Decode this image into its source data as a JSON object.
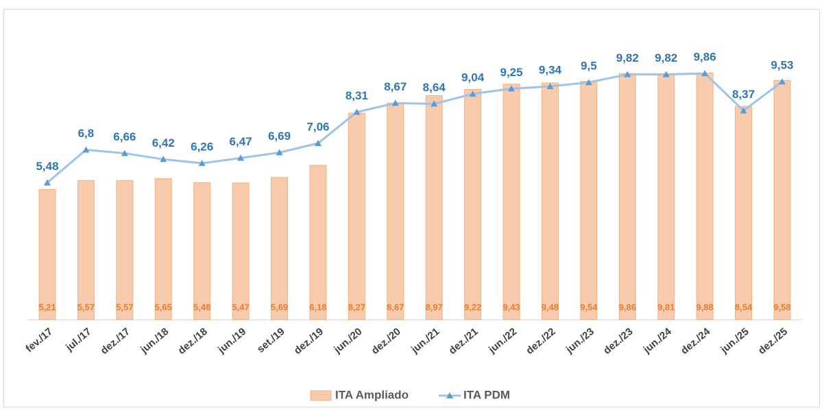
{
  "chart_data": {
    "type": "bar",
    "categories": [
      "fev./17",
      "jul./17",
      "dez./17",
      "jun./18",
      "dez./18",
      "jun./19",
      "set./19",
      "dez./19",
      "jun./20",
      "dez./20",
      "jun./21",
      "dez./21",
      "jun./22",
      "dez./22",
      "jun./23",
      "dez./23",
      "jun./24",
      "dez./24",
      "jun./25",
      "dez./25"
    ],
    "series": [
      {
        "name": "ITA Ampliado",
        "type": "bar",
        "color": "#f8cbad",
        "values": [
          5.21,
          5.57,
          5.57,
          5.65,
          5.48,
          5.47,
          5.69,
          6.18,
          8.27,
          8.67,
          8.97,
          9.22,
          9.43,
          9.48,
          9.54,
          9.86,
          9.81,
          9.88,
          8.54,
          9.58
        ],
        "value_labels": [
          "5,21",
          "5,57",
          "5,57",
          "5,65",
          "5,48",
          "5,47",
          "5,69",
          "6,18",
          "8,27",
          "8,67",
          "8,97",
          "9,22",
          "9,43",
          "9,48",
          "9,54",
          "9,86",
          "9,81",
          "9,88",
          "8,54",
          "9,58"
        ]
      },
      {
        "name": "ITA PDM",
        "type": "line",
        "color": "#9dc3e6",
        "values": [
          5.48,
          6.8,
          6.66,
          6.42,
          6.26,
          6.47,
          6.69,
          7.06,
          8.31,
          8.67,
          8.64,
          9.04,
          9.25,
          9.34,
          9.5,
          9.82,
          9.82,
          9.86,
          8.37,
          9.53
        ],
        "value_labels": [
          "5,48",
          "6,8",
          "6,66",
          "6,42",
          "6,26",
          "6,47",
          "6,69",
          "7,06",
          "8,31",
          "8,67",
          "8,64",
          "9,04",
          "9,25",
          "9,34",
          "9,5",
          "9,82",
          "9,82",
          "9,86",
          "8,37",
          "9,53"
        ]
      }
    ],
    "legend": "bottom"
  }
}
